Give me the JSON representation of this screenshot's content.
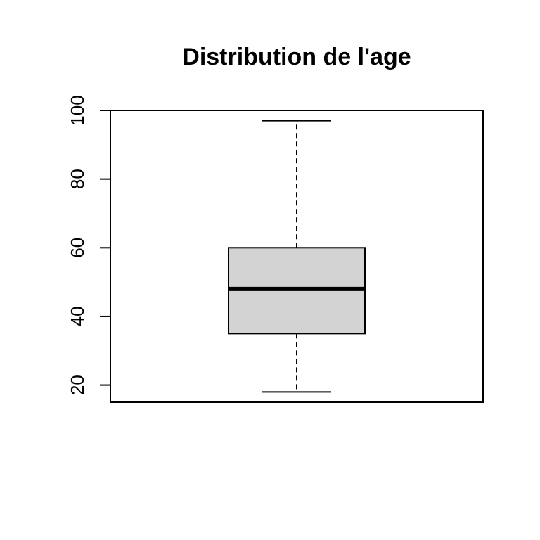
{
  "chart_data": {
    "type": "boxplot",
    "title": "Distribution de l'age",
    "xlabel": "",
    "ylabel": "",
    "ylim": [
      15,
      100
    ],
    "yticks": [
      20,
      40,
      60,
      80,
      100
    ],
    "grid": false,
    "box": {
      "min": 18,
      "q1": 35,
      "median": 48,
      "q3": 60,
      "max": 97
    },
    "box_fill": "#d3d3d3",
    "line_color": "#000000"
  }
}
